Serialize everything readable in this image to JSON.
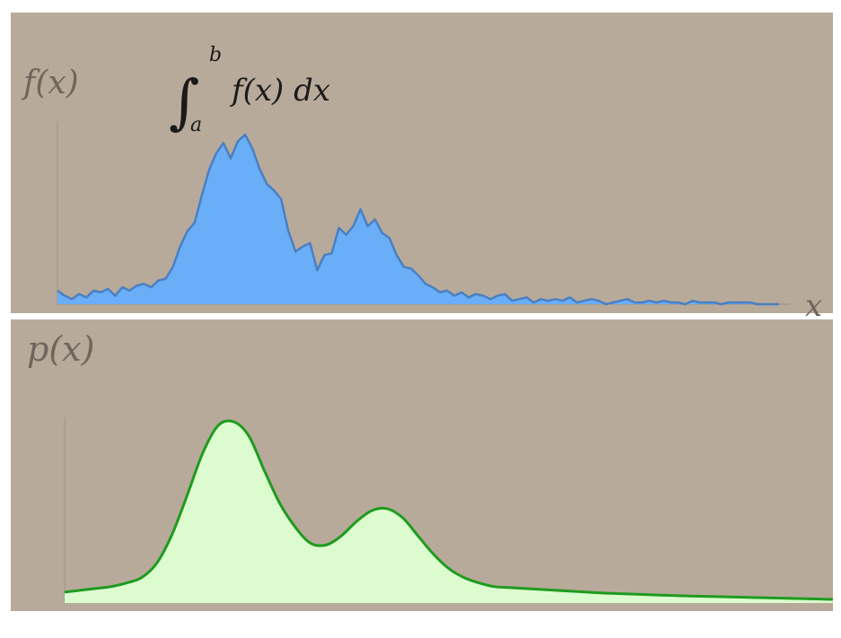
{
  "colors": {
    "panel_bg": "#b8aa9a",
    "axis": "#a79a8b",
    "top_fill": "#6aaef8",
    "top_stroke": "#4a7fc2",
    "bottom_fill": "#dcfccf",
    "bottom_stroke": "#1f9b1f",
    "label_dim": "#6e655c",
    "label_dark": "#1a1a1a"
  },
  "chart_data": [
    {
      "type": "area",
      "ylabel": "f(x)",
      "xlabel": "x",
      "annotation": {
        "integral_sign": "∫",
        "upper_limit": "b",
        "lower_limit": "a",
        "integrand": "f(x) dx"
      },
      "grid": false,
      "x": [
        0,
        0.01,
        0.02,
        0.03,
        0.04,
        0.05,
        0.06,
        0.07,
        0.08,
        0.09,
        0.1,
        0.11,
        0.12,
        0.13,
        0.14,
        0.15,
        0.16,
        0.17,
        0.18,
        0.19,
        0.2,
        0.21,
        0.22,
        0.23,
        0.24,
        0.25,
        0.26,
        0.27,
        0.28,
        0.29,
        0.3,
        0.31,
        0.32,
        0.33,
        0.34,
        0.35,
        0.36,
        0.37,
        0.38,
        0.39,
        0.4,
        0.41,
        0.42,
        0.43,
        0.44,
        0.45,
        0.46,
        0.47,
        0.48,
        0.49,
        0.5,
        0.51,
        0.52,
        0.53,
        0.54,
        0.55,
        0.56,
        0.57,
        0.58,
        0.59,
        0.6,
        0.61,
        0.62,
        0.63,
        0.64,
        0.65,
        0.66,
        0.67,
        0.68,
        0.69,
        0.7,
        0.71,
        0.72,
        0.73,
        0.74,
        0.75,
        0.76,
        0.77,
        0.78,
        0.79,
        0.8,
        0.81,
        0.82,
        0.83,
        0.84,
        0.85,
        0.86,
        0.87,
        0.88,
        0.89,
        0.9,
        0.91,
        0.92,
        0.93,
        0.94,
        0.95,
        0.96,
        0.97,
        0.98,
        0.99,
        1.0
      ],
      "values": [
        0.08,
        0.05,
        0.03,
        0.06,
        0.04,
        0.08,
        0.07,
        0.09,
        0.05,
        0.1,
        0.08,
        0.11,
        0.12,
        0.1,
        0.14,
        0.15,
        0.22,
        0.34,
        0.43,
        0.48,
        0.64,
        0.79,
        0.89,
        0.95,
        0.86,
        0.96,
        1.0,
        0.92,
        0.8,
        0.71,
        0.67,
        0.62,
        0.43,
        0.31,
        0.34,
        0.36,
        0.2,
        0.29,
        0.3,
        0.45,
        0.41,
        0.46,
        0.56,
        0.46,
        0.5,
        0.42,
        0.39,
        0.29,
        0.22,
        0.21,
        0.17,
        0.12,
        0.1,
        0.07,
        0.08,
        0.05,
        0.07,
        0.04,
        0.06,
        0.05,
        0.03,
        0.05,
        0.06,
        0.02,
        0.03,
        0.04,
        0.01,
        0.03,
        0.02,
        0.03,
        0.02,
        0.04,
        0.01,
        0.02,
        0.03,
        0.02,
        0.0,
        0.01,
        0.02,
        0.03,
        0.01,
        0.01,
        0.02,
        0.01,
        0.02,
        0.01,
        0.01,
        0.0,
        0.02,
        0.01,
        0.01,
        0.01,
        0.0,
        0.01,
        0.01,
        0.01,
        0.01,
        0.0,
        0.0,
        0.0,
        0.0
      ],
      "ylim": [
        0,
        1
      ]
    },
    {
      "type": "area",
      "ylabel": "p(x)",
      "xlabel": "",
      "grid": false,
      "x": [
        0,
        0.02,
        0.04,
        0.06,
        0.08,
        0.1,
        0.12,
        0.14,
        0.16,
        0.18,
        0.2,
        0.22,
        0.24,
        0.26,
        0.28,
        0.3,
        0.32,
        0.34,
        0.36,
        0.38,
        0.4,
        0.42,
        0.44,
        0.46,
        0.48,
        0.5,
        0.52,
        0.54,
        0.56,
        0.58,
        0.6,
        0.62,
        0.64,
        0.66,
        0.68,
        0.7,
        0.72,
        0.74,
        0.76,
        0.78,
        0.8,
        0.82,
        0.84,
        0.86,
        0.88,
        0.9,
        0.92,
        0.94,
        0.96,
        0.98,
        1.0
      ],
      "values": [
        0.06,
        0.07,
        0.08,
        0.09,
        0.11,
        0.14,
        0.22,
        0.38,
        0.6,
        0.83,
        0.98,
        1.0,
        0.92,
        0.73,
        0.55,
        0.42,
        0.33,
        0.32,
        0.37,
        0.45,
        0.51,
        0.52,
        0.47,
        0.37,
        0.27,
        0.19,
        0.14,
        0.11,
        0.09,
        0.085,
        0.08,
        0.075,
        0.07,
        0.065,
        0.06,
        0.055,
        0.052,
        0.049,
        0.046,
        0.043,
        0.04,
        0.038,
        0.036,
        0.034,
        0.032,
        0.03,
        0.028,
        0.026,
        0.024,
        0.022,
        0.02
      ],
      "ylim": [
        0,
        1
      ]
    }
  ]
}
